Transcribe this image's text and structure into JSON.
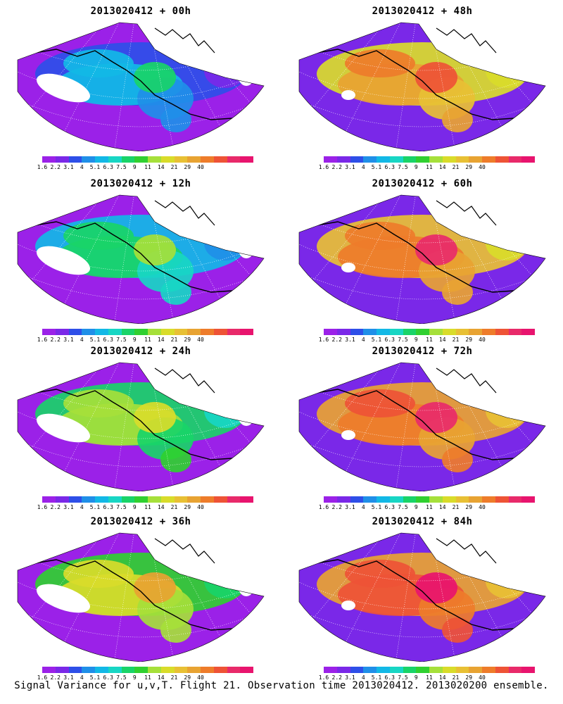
{
  "panels": [
    {
      "title": "2013020412 + 00h"
    },
    {
      "title": "2013020412 + 48h"
    },
    {
      "title": "2013020412 + 12h"
    },
    {
      "title": "2013020412 + 60h"
    },
    {
      "title": "2013020412 + 24h"
    },
    {
      "title": "2013020412 + 72h"
    },
    {
      "title": "2013020412 + 36h"
    },
    {
      "title": "2013020412 + 84h"
    }
  ],
  "colorbar": {
    "colors": [
      "#9b21e8",
      "#7a28e8",
      "#2e4fe8",
      "#1f8fe8",
      "#12b8e6",
      "#18d6c4",
      "#19d468",
      "#30d030",
      "#a6e03a",
      "#d9dc2a",
      "#e8c034",
      "#e8a332",
      "#ee7c2a",
      "#ee5336",
      "#e82a6a",
      "#e8146e"
    ],
    "labels": [
      "1.6",
      "2.2",
      "3.1",
      "4",
      "5.1",
      "6.3",
      "7.5",
      "9",
      "11",
      "14",
      "21",
      "29",
      "40"
    ]
  },
  "footer": "Signal Variance for u,v,T. Flight 21. Observation time 2013020412. 2013020200 ensemble."
}
